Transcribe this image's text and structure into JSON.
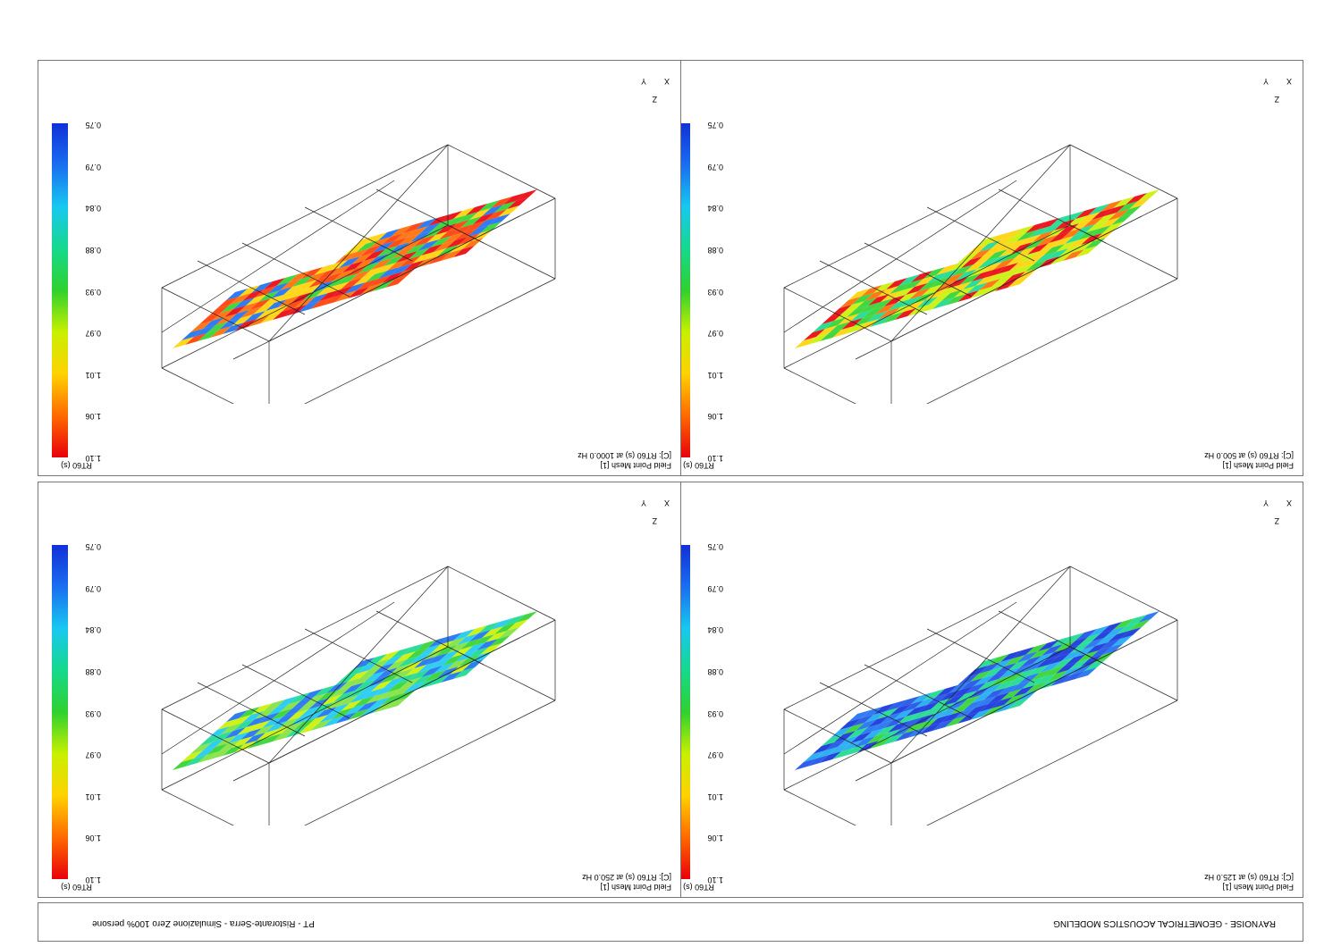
{
  "footer": {
    "left": "RAYNOISE - GEOMETRICAL ACOUSTICS MODELING",
    "right": "PT - Ristorante-Serra - Simulazione Zero 100% persone"
  },
  "panels": [
    {
      "mesh": "Field Point Mesh [1]",
      "caption": "[C]: RT60 (s) at 125.0 Hz",
      "scale_label": "RT60 (s)",
      "pattern": "cool"
    },
    {
      "mesh": "Field Point Mesh [1]",
      "caption": "[C]: RT60 (s) at 250.0 Hz",
      "scale_label": "RT60 (s)",
      "pattern": "mid"
    },
    {
      "mesh": "Field Point Mesh [1]",
      "caption": "[C]: RT60 (s) at 500.0 Hz",
      "scale_label": "RT60 (s)",
      "pattern": "warm"
    },
    {
      "mesh": "Field Point Mesh [1]",
      "caption": "[C]: RT60 (s) at 1000.0 Hz",
      "scale_label": "RT60 (s)",
      "pattern": "hot"
    }
  ],
  "colorbar_ticks": [
    "1.10",
    "1.06",
    "1.01",
    "0.97",
    "0.93",
    "0.88",
    "0.84",
    "0.79",
    "0.75"
  ],
  "axes": {
    "x": "X",
    "y": "Y",
    "z": "Z"
  }
}
